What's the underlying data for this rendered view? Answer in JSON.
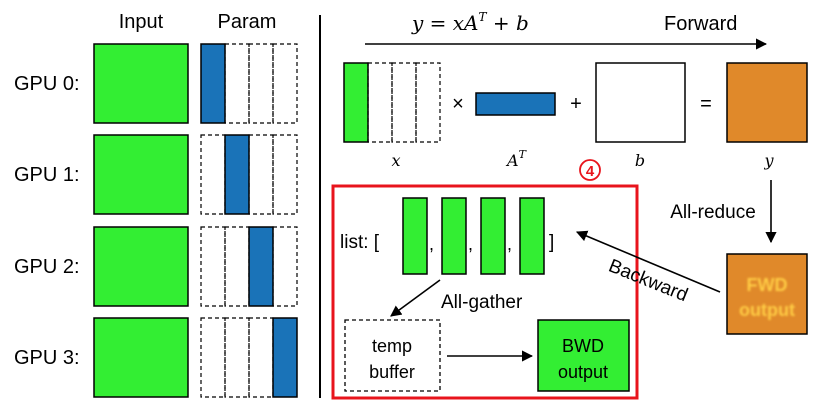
{
  "left": {
    "input_header": "Input",
    "param_header": "Param",
    "gpus": [
      "GPU 0:",
      "GPU 1:",
      "GPU 2:",
      "GPU 3:"
    ],
    "shard_index": [
      0,
      1,
      2,
      3
    ]
  },
  "forward": {
    "equation": "y = xA",
    "equation_sup": "T",
    "equation_tail": " + b",
    "label": "Forward",
    "times_sign": "×",
    "plus_sign": "+",
    "equals_sign": "=",
    "x_label": "x",
    "at_label": "A",
    "at_sup": "T",
    "b_label": "b",
    "y_label": "y",
    "all_reduce": "All-reduce",
    "fwd_output_line1": "FWD",
    "fwd_output_line2": "output"
  },
  "backward": {
    "step_badge": "4",
    "list_prefix": "list: [",
    "list_suffix": "]",
    "comma": ",",
    "all_gather": "All-gather",
    "temp_line1": "temp",
    "temp_line2": "buffer",
    "bwd_line1": "BWD",
    "bwd_line2": "output",
    "backward_label": "Backward"
  },
  "colors": {
    "green": "#33ee33",
    "blue": "#1a73b8",
    "orange": "#e0892a",
    "red": "#e8141c",
    "fwd_text": "#ffcc44"
  }
}
